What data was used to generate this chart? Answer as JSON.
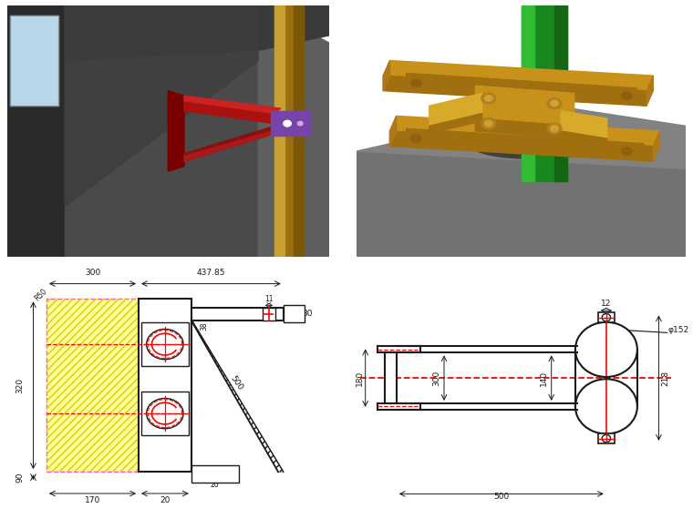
{
  "bg_color": "#ffffff",
  "lc": "#1a1a1a",
  "rc": "#ff0000",
  "yellow_fill": "#ffff99",
  "yellow_hatch": "#e8c800",
  "pink_dash": "#ff44ff",
  "wall_dark": "#3d3d3d",
  "wall_mid": "#555555",
  "wall_light": "#6e6e6e",
  "wall_diagonal": "#4a4a4a",
  "pipe_gold": "#a07818",
  "pipe_gold_hi": "#c8a030",
  "bracket_red": "#990000",
  "bracket_red_hi": "#bb2222",
  "bracket_shadow": "#660000",
  "clamp_purple": "#7744aa",
  "green_pipe": "#22aa22",
  "green_hi": "#44cc44",
  "gold_bracket": "#b8891e",
  "gold_hi": "#d4aa3a",
  "floor_gray": "#888888",
  "floor_dark": "#666666"
}
